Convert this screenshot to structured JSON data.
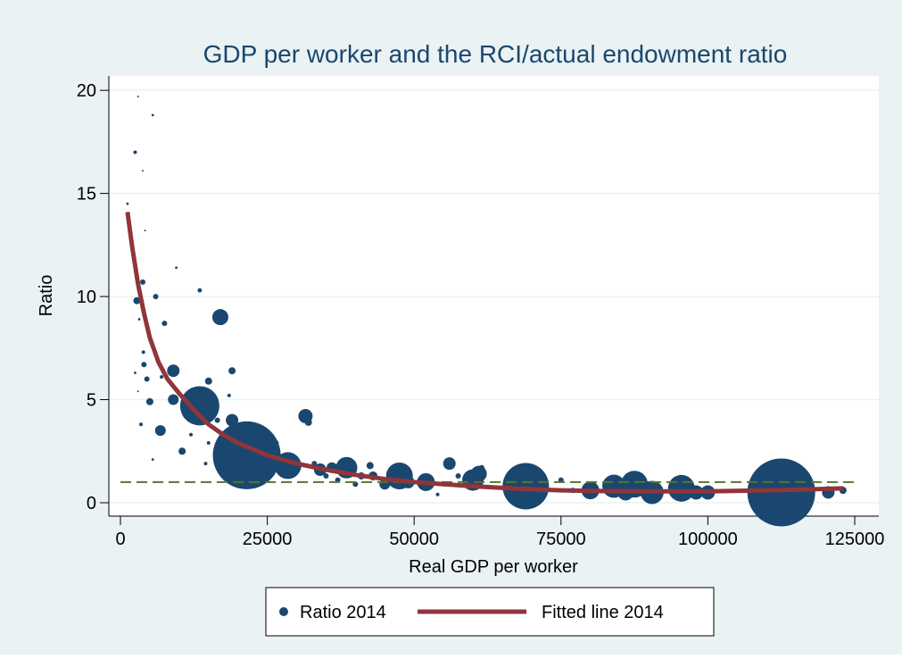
{
  "chart_data": {
    "type": "scatter",
    "title": "GDP per worker and the RCI/actual endowment ratio",
    "x_label": "Real GDP per worker",
    "y_label": "Ratio",
    "xlim": [
      -1975,
      129100
    ],
    "ylim": [
      -0.65,
      20.7
    ],
    "xticks": [
      0,
      25000,
      50000,
      75000,
      100000,
      125000
    ],
    "yticks": [
      0,
      5,
      10,
      15,
      20
    ],
    "grid": true,
    "legend_position": "bottom",
    "reference_line": {
      "value": 1,
      "color": "#55752f",
      "dashed": true
    },
    "series": [
      {
        "name": "Ratio 2014",
        "type": "scatter",
        "color": "#1a476f",
        "x": [
          3000,
          5500,
          2500,
          3800,
          1200,
          4200,
          9500,
          13500,
          3800,
          2800,
          6000,
          17000,
          7500,
          3200,
          5000,
          3900,
          4000,
          2500,
          9000,
          19000,
          7000,
          4500,
          15000,
          3000,
          13500,
          9000,
          18500,
          5000,
          11000,
          16500,
          19000,
          3500,
          6800,
          12000,
          31500,
          32000,
          15000,
          10500,
          21500,
          26500,
          28500,
          5500,
          14500,
          33000,
          34000,
          36000,
          38500,
          35000,
          37000,
          41000,
          40000,
          42500,
          43000,
          45000,
          47500,
          49000,
          52000,
          54000,
          56000,
          57500,
          60000,
          61000,
          61500,
          69000,
          75000,
          77000,
          80000,
          84000,
          86000,
          87500,
          90500,
          95500,
          98000,
          100000,
          112500,
          120500,
          123000
        ],
        "values": [
          19.7,
          18.8,
          17.0,
          16.1,
          14.5,
          13.2,
          11.4,
          10.3,
          10.7,
          9.8,
          10.0,
          9.0,
          8.7,
          8.9,
          8.0,
          7.3,
          6.7,
          6.3,
          6.4,
          6.4,
          6.1,
          6.0,
          5.9,
          5.4,
          4.7,
          5.0,
          5.2,
          4.9,
          4.2,
          4.0,
          4.0,
          3.8,
          3.5,
          3.3,
          4.2,
          3.9,
          2.9,
          2.5,
          2.3,
          2.9,
          1.8,
          2.1,
          1.9,
          1.9,
          1.6,
          1.7,
          1.7,
          1.3,
          1.1,
          1.3,
          0.9,
          1.8,
          1.3,
          0.9,
          1.3,
          1.0,
          1.0,
          0.4,
          1.9,
          1.3,
          1.1,
          1.4,
          1.7,
          0.8,
          1.1,
          0.6,
          0.6,
          0.8,
          0.5,
          0.9,
          0.5,
          0.7,
          0.5,
          0.5,
          0.5,
          0.5,
          0.6
        ],
        "sizes": [
          1,
          2,
          4,
          1,
          2,
          1,
          2,
          6,
          9,
          16,
          9,
          81,
          9,
          2,
          2,
          4,
          9,
          2,
          49,
          16,
          4,
          9,
          16,
          1,
          484,
          36,
          4,
          16,
          4,
          9,
          49,
          4,
          36,
          4,
          64,
          16,
          4,
          16,
          1444,
          9,
          225,
          2,
          4,
          9,
          49,
          36,
          144,
          9,
          9,
          16,
          9,
          16,
          25,
          36,
          225,
          49,
          100,
          4,
          49,
          9,
          144,
          81,
          9,
          676,
          9,
          9,
          100,
          169,
          81,
          225,
          169,
          225,
          64,
          64,
          1444,
          49,
          16
        ]
      },
      {
        "name": "Fitted line 2014",
        "type": "line",
        "color": "#90353b",
        "x": [
          1200,
          2000,
          3000,
          4000,
          5000,
          6500,
          8000,
          10000,
          12500,
          15000,
          17500,
          20000,
          25000,
          30000,
          35000,
          40000,
          45000,
          50000,
          55000,
          60000,
          67500,
          75000,
          82500,
          90000,
          100000,
          110000,
          117500,
          123000
        ],
        "values": [
          14.1,
          12.4,
          10.6,
          9.2,
          8.0,
          6.8,
          6.0,
          5.3,
          4.5,
          3.8,
          3.3,
          2.9,
          2.3,
          1.9,
          1.6,
          1.35,
          1.15,
          1.0,
          0.9,
          0.8,
          0.68,
          0.6,
          0.56,
          0.55,
          0.55,
          0.6,
          0.65,
          0.7
        ]
      }
    ]
  }
}
